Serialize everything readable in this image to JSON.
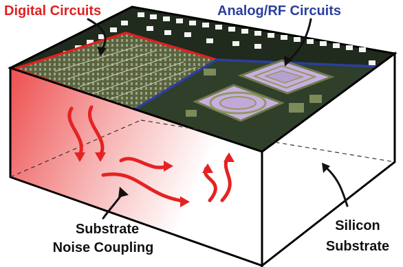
{
  "labels": {
    "digital": "Digital Circuits",
    "analog": "Analog/RF Circuits",
    "noise_line1": "Substrate",
    "noise_line2": "Noise Coupling",
    "silicon_line1": "Silicon",
    "silicon_line2": "Substrate"
  },
  "colors": {
    "digital": "#e02020",
    "analog": "#2a3f9e",
    "noise_arrows": "#e52222",
    "text": "#111111"
  }
}
